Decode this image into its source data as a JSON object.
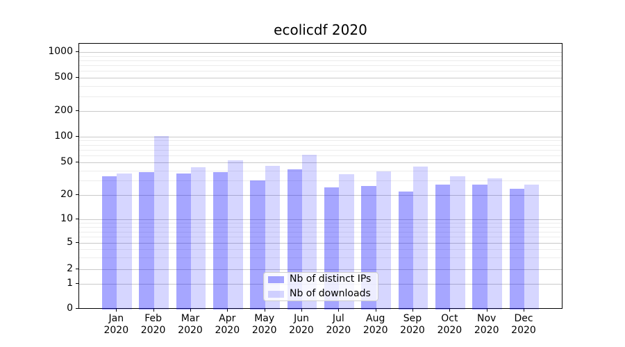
{
  "chart_data": {
    "type": "bar",
    "title": "ecolicdf 2020",
    "categories": [
      {
        "month": "Jan",
        "year": "2020"
      },
      {
        "month": "Feb",
        "year": "2020"
      },
      {
        "month": "Mar",
        "year": "2020"
      },
      {
        "month": "Apr",
        "year": "2020"
      },
      {
        "month": "May",
        "year": "2020"
      },
      {
        "month": "Jun",
        "year": "2020"
      },
      {
        "month": "Jul",
        "year": "2020"
      },
      {
        "month": "Aug",
        "year": "2020"
      },
      {
        "month": "Sep",
        "year": "2020"
      },
      {
        "month": "Oct",
        "year": "2020"
      },
      {
        "month": "Nov",
        "year": "2020"
      },
      {
        "month": "Dec",
        "year": "2020"
      }
    ],
    "series": [
      {
        "name": "Nb of distinct IPs",
        "values": [
          34,
          38,
          37,
          38,
          30,
          41,
          25,
          26,
          22,
          27,
          27,
          24
        ]
      },
      {
        "name": "Nb of downloads",
        "values": [
          37,
          102,
          44,
          53,
          46,
          62,
          36,
          39,
          45,
          34,
          32,
          27
        ]
      }
    ],
    "yscale": "symlog",
    "yticks": [
      0,
      1,
      2,
      5,
      10,
      20,
      50,
      100,
      200,
      500,
      1000
    ],
    "ytick_labels": [
      "0",
      "1",
      "2",
      "5",
      "10",
      "20",
      "50",
      "100",
      "200",
      "500",
      "1000"
    ],
    "ylim": [
      0,
      1200
    ],
    "xlabel": "",
    "ylabel": "",
    "grid": "both",
    "legend_position": "lower center",
    "colors": {
      "bar_base": "#0000ff",
      "bar_dark_alpha": 0.35,
      "bar_light_alpha": 0.16,
      "grid_major": "#c9c9c9",
      "grid_minor": "#ececec",
      "spine": "#000000",
      "text": "#000000",
      "legend_border": "#cccccc"
    }
  }
}
